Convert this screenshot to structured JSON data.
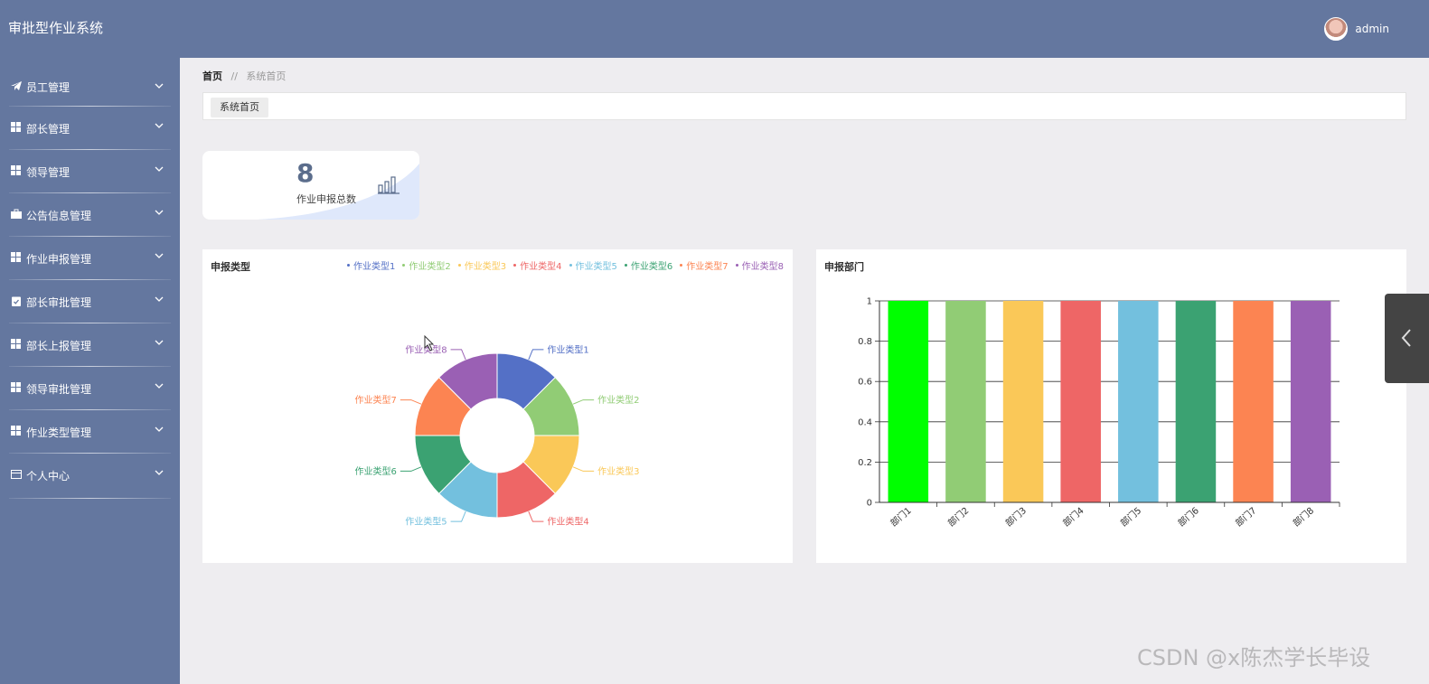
{
  "app": {
    "title": "审批型作业系统"
  },
  "user": {
    "name": "admin"
  },
  "sidebar": {
    "items": [
      {
        "label": "员工管理",
        "icon": "paper-plane-icon"
      },
      {
        "label": "部长管理",
        "icon": "grid-icon"
      },
      {
        "label": "领导管理",
        "icon": "grid-icon"
      },
      {
        "label": "公告信息管理",
        "icon": "briefcase-icon"
      },
      {
        "label": "作业申报管理",
        "icon": "grid-icon"
      },
      {
        "label": "部长审批管理",
        "icon": "clipboard-icon"
      },
      {
        "label": "部长上报管理",
        "icon": "grid-icon"
      },
      {
        "label": "领导审批管理",
        "icon": "grid-icon"
      },
      {
        "label": "作业类型管理",
        "icon": "grid-icon"
      },
      {
        "label": "个人中心",
        "icon": "card-icon"
      }
    ]
  },
  "breadcrumb": {
    "home": "首页",
    "separator": "//",
    "current": "系统首页"
  },
  "tabs": [
    {
      "label": "系统首页"
    }
  ],
  "stat": {
    "value": "8",
    "label": "作业申报总数",
    "icon": "bar-chart-icon"
  },
  "pie_panel": {
    "title": "申报类型"
  },
  "bar_panel": {
    "title": "申报部门"
  },
  "watermark": "CSDN @x陈杰学长毕设",
  "colors": {
    "primary": "#64779f",
    "series": [
      "#5470c6",
      "#91cc75",
      "#fac858",
      "#ee6666",
      "#73c0de",
      "#3ba272",
      "#fc8452",
      "#9a60b4"
    ],
    "bar_series": [
      "#00ff00",
      "#91cc75",
      "#fac858",
      "#ee6666",
      "#73c0de",
      "#3ba272",
      "#fc8452",
      "#9a60b4"
    ]
  },
  "chart_data": [
    {
      "type": "pie",
      "title": "申报类型",
      "legend_position": "top-right",
      "categories": [
        "作业类型1",
        "作业类型2",
        "作业类型3",
        "作业类型4",
        "作业类型5",
        "作业类型6",
        "作业类型7",
        "作业类型8"
      ],
      "values": [
        1,
        1,
        1,
        1,
        1,
        1,
        1,
        1
      ]
    },
    {
      "type": "bar",
      "title": "申报部门",
      "categories": [
        "部门1",
        "部门2",
        "部门3",
        "部门4",
        "部门5",
        "部门6",
        "部门7",
        "部门8"
      ],
      "values": [
        1,
        1,
        1,
        1,
        1,
        1,
        1,
        1
      ],
      "yticks": [
        "0",
        "0.2",
        "0.4",
        "0.6",
        "0.8",
        "1"
      ],
      "ylim": [
        0,
        1
      ],
      "grid": true
    }
  ]
}
